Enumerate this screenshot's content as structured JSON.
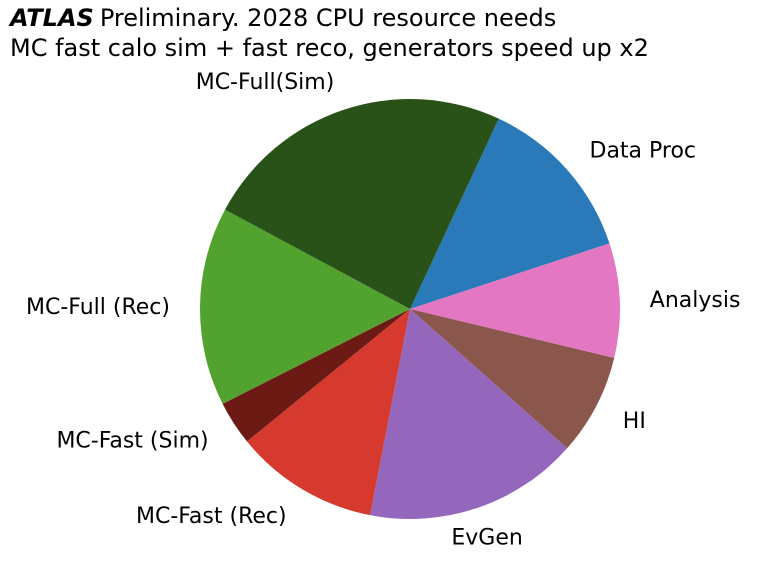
{
  "header": {
    "experiment": "ATLAS",
    "title": "Preliminary. 2028 CPU resource needs",
    "subtitle": "MC fast calo sim + fast reco, generators speed up x2"
  },
  "chart_data": {
    "type": "pie",
    "start_angle_deg": 65,
    "direction": "clockwise",
    "slices": [
      {
        "label": "Data Proc",
        "value": 13.0,
        "color": "#2a79b8"
      },
      {
        "label": "Analysis",
        "value": 8.8,
        "color": "#e377c2"
      },
      {
        "label": "HI",
        "value": 7.8,
        "color": "#8b564c"
      },
      {
        "label": "EvGen",
        "value": 16.5,
        "color": "#9467bd"
      },
      {
        "label": "MC-Fast (Rec)",
        "value": 11.1,
        "color": "#d63a2f"
      },
      {
        "label": "MC-Fast (Sim)",
        "value": 3.4,
        "color": "#6b1a14"
      },
      {
        "label": "MC-Full (Rec)",
        "value": 15.3,
        "color": "#52a22f"
      },
      {
        "label": "MC-Full(Sim)",
        "value": 24.1,
        "color": "#285218"
      }
    ]
  }
}
